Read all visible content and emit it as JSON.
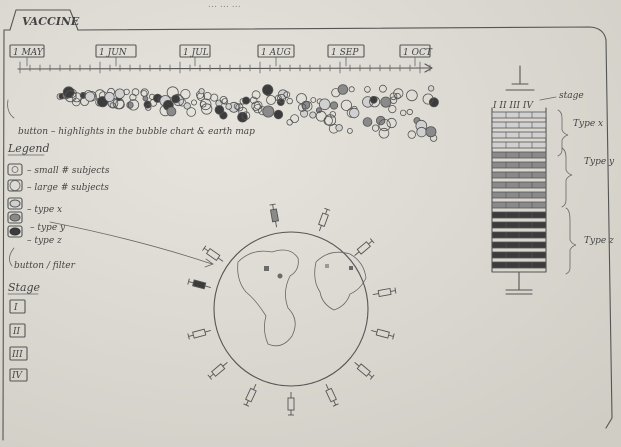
{
  "header_scribble": "… … …",
  "tab_label": "VACCINE",
  "timeline": {
    "months": [
      "1 MAY",
      "1 JUN",
      "1 JUL",
      "1 AUG",
      "1 SEP",
      "1 OCT"
    ]
  },
  "button_note": "button – highlights in the bubble chart & earth map",
  "legend": {
    "title": "Legend",
    "items": [
      {
        "label": "– small # subjects",
        "icon": "small-circle-icon"
      },
      {
        "label": "– large # subjects",
        "icon": "large-circle-icon"
      },
      {
        "label": "– type x",
        "icon": "type-x-swatch-icon"
      },
      {
        "label": "– type y",
        "icon": "type-y-swatch-icon"
      },
      {
        "label": "– type z",
        "icon": "type-z-swatch-icon"
      }
    ]
  },
  "filter_note": "button / filter",
  "stage": {
    "title": "Stage",
    "buttons": [
      "I",
      "II",
      "III",
      "IV"
    ]
  },
  "syringe": {
    "stage_header": "I II III IV",
    "stage_label": "stage",
    "type_labels": [
      "Type x",
      "Type y",
      "Type z"
    ]
  },
  "colors": {
    "paper": "#d9d7cf",
    "pencil": "#555555",
    "type_x": "#d0d0d0",
    "type_y": "#8a8a8a",
    "type_z": "#3c3c3c"
  }
}
